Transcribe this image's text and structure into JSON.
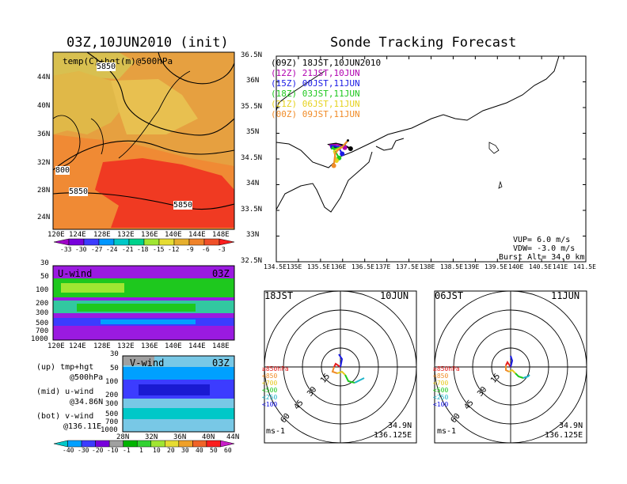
{
  "titles": {
    "init": "03Z,10JUN2010 (init)",
    "main": "Sonde Tracking Forecast"
  },
  "colors": {
    "ocean": "#e6912e",
    "track_09z": "#000000",
    "track_12z": "#b000b0",
    "track_15z": "#1a1ae6",
    "track_18z": "#1ec81e",
    "track_21z": "#e6d21e",
    "track_00z": "#f08c28"
  },
  "top_left": {
    "label": "temp(C)+hgt(m)@500hPa",
    "contour_labels": [
      "5850",
      "800",
      "5850",
      "5850"
    ],
    "lat_ticks": [
      "44N",
      "40N",
      "36N",
      "32N",
      "28N",
      "24N"
    ],
    "lon_ticks": [
      "120E",
      "124E",
      "128E",
      "132E",
      "136E",
      "140E",
      "144E",
      "148E"
    ],
    "colorbar_labels": [
      "-33",
      "-30",
      "-27",
      "-24",
      "-21",
      "-18",
      "-15",
      "-12",
      "-9",
      "-6",
      "-3"
    ],
    "colorbar_colors": [
      "#a000c8",
      "#7800dc",
      "#3c3cff",
      "#0096ff",
      "#00c8c8",
      "#00d28c",
      "#a0e632",
      "#e6dc32",
      "#e6af2d",
      "#f08228",
      "#f05028",
      "#fa1e1e"
    ]
  },
  "uwind": {
    "label": "U-wind",
    "time": "03Z",
    "p_ticks": [
      "30",
      "50",
      "100",
      "200",
      "300",
      "500",
      "700",
      "1000"
    ],
    "lon_ticks": [
      "120E",
      "124E",
      "128E",
      "132E",
      "136E",
      "140E",
      "144E",
      "148E"
    ]
  },
  "vwind": {
    "label": "V-wind",
    "time": "03Z",
    "p_ticks": [
      "30",
      "50",
      "100",
      "200",
      "300",
      "500",
      "700",
      "1000"
    ],
    "lat_ticks": [
      "28N",
      "32N",
      "36N",
      "40N",
      "44N"
    ],
    "colorbar_labels": [
      "-40",
      "-30",
      "-20",
      "-10",
      "-1",
      "1",
      "10",
      "20",
      "30",
      "40",
      "50",
      "60"
    ],
    "colorbar_colors": [
      "#00c8c8",
      "#00a0ff",
      "#3c3cff",
      "#7800dc",
      "#a0a0a0",
      "#00b400",
      "#32d232",
      "#a0e632",
      "#e6dc32",
      "#f0a028",
      "#f06428",
      "#fa1e1e",
      "#c81ec8"
    ]
  },
  "notes": [
    "(up) tmp+hgt",
    "@500hPa",
    "(mid) u-wind",
    "@34.86N",
    "(bot) v-wind",
    "@136.11E"
  ],
  "map": {
    "legend": [
      {
        "text": "(09Z)  18JST,10JUN2010"
      },
      {
        "text": "(12Z)  21JST,10JUN"
      },
      {
        "text": "(15Z)  00JST,11JUN"
      },
      {
        "text": "(18Z)  03JST,11JUN"
      },
      {
        "text": "(21Z)  06JST,11JUN"
      },
      {
        "text": "(00Z)  09JST,11JUN"
      }
    ],
    "lat_ticks": [
      "36.5N",
      "36N",
      "35.5N",
      "35N",
      "34.5N",
      "34N",
      "33.5N",
      "33N",
      "32.5N"
    ],
    "lon_ticks": [
      "134.5E",
      "135E",
      "135.5E",
      "136E",
      "136.5E",
      "137E",
      "137.5E",
      "138E",
      "138.5E",
      "139E",
      "139.5E",
      "140E",
      "140.5E",
      "141E",
      "141.5E"
    ],
    "params": [
      "VUP=  6.0  m/s",
      "VDW= -3.0  m/s",
      "Burst Alt=  34.0  km"
    ]
  },
  "hodo1": {
    "jst": "18JST",
    "date": "10JUN",
    "lat": "34.9N",
    "lon": "136.125E",
    "unit": "ms-1"
  },
  "hodo2": {
    "jst": "06JST",
    "date": "11JUN",
    "lat": "34.9N",
    "lon": "136.125E",
    "unit": "ms-1"
  },
  "hodo_rings": [
    "15",
    "30",
    "45",
    "60"
  ],
  "hodo_levels": [
    {
      "text": "≥850hPa",
      "color": "#e61e1e"
    },
    {
      "text": "<850",
      "color": "#f08c28"
    },
    {
      "text": "<700",
      "color": "#e6c81e"
    },
    {
      "text": "<500",
      "color": "#1ec81e"
    },
    {
      "text": "<250",
      "color": "#1eb4c8"
    },
    {
      "text": "<100",
      "color": "#1a1ae6"
    }
  ],
  "chart_data": {
    "type": "line",
    "title": "Sonde Tracking Forecast",
    "xlabel": "",
    "ylabel": "",
    "xlim": [
      134.5,
      141.5
    ],
    "ylim": [
      32.5,
      36.5
    ],
    "launch_point": {
      "lon": 136.12,
      "lat": 34.86
    },
    "series": [
      {
        "name": "(09Z)",
        "x": [
          136.12,
          136.02,
          135.9,
          135.78,
          135.7,
          135.85,
          136.05,
          136.18
        ],
        "y": [
          34.86,
          34.75,
          34.72,
          34.74,
          34.78,
          34.8,
          34.76,
          34.7
        ]
      },
      {
        "name": "(12Z)",
        "x": [
          136.12,
          136.0,
          135.86,
          135.74,
          135.72,
          135.88,
          136.05
        ],
        "y": [
          34.86,
          34.74,
          34.7,
          34.72,
          34.77,
          34.78,
          34.72
        ]
      },
      {
        "name": "(15Z)",
        "x": [
          136.12,
          136.0,
          135.84,
          135.74,
          135.74,
          135.9,
          135.99
        ],
        "y": [
          34.86,
          34.74,
          34.7,
          34.72,
          34.76,
          34.74,
          34.6
        ]
      },
      {
        "name": "(18Z)",
        "x": [
          136.12,
          136.0,
          135.84,
          135.76,
          135.78,
          135.92
        ],
        "y": [
          34.86,
          34.74,
          34.7,
          34.7,
          34.73,
          34.52
        ]
      },
      {
        "name": "(21Z)",
        "x": [
          136.12,
          136.0,
          135.86,
          135.8,
          135.82,
          135.86
        ],
        "y": [
          34.86,
          34.74,
          34.68,
          34.65,
          34.6,
          34.47
        ]
      },
      {
        "name": "(00Z)",
        "x": [
          136.12,
          136.0,
          135.88,
          135.83,
          135.82,
          135.8
        ],
        "y": [
          34.86,
          34.74,
          34.66,
          34.6,
          34.52,
          34.37
        ]
      }
    ]
  }
}
